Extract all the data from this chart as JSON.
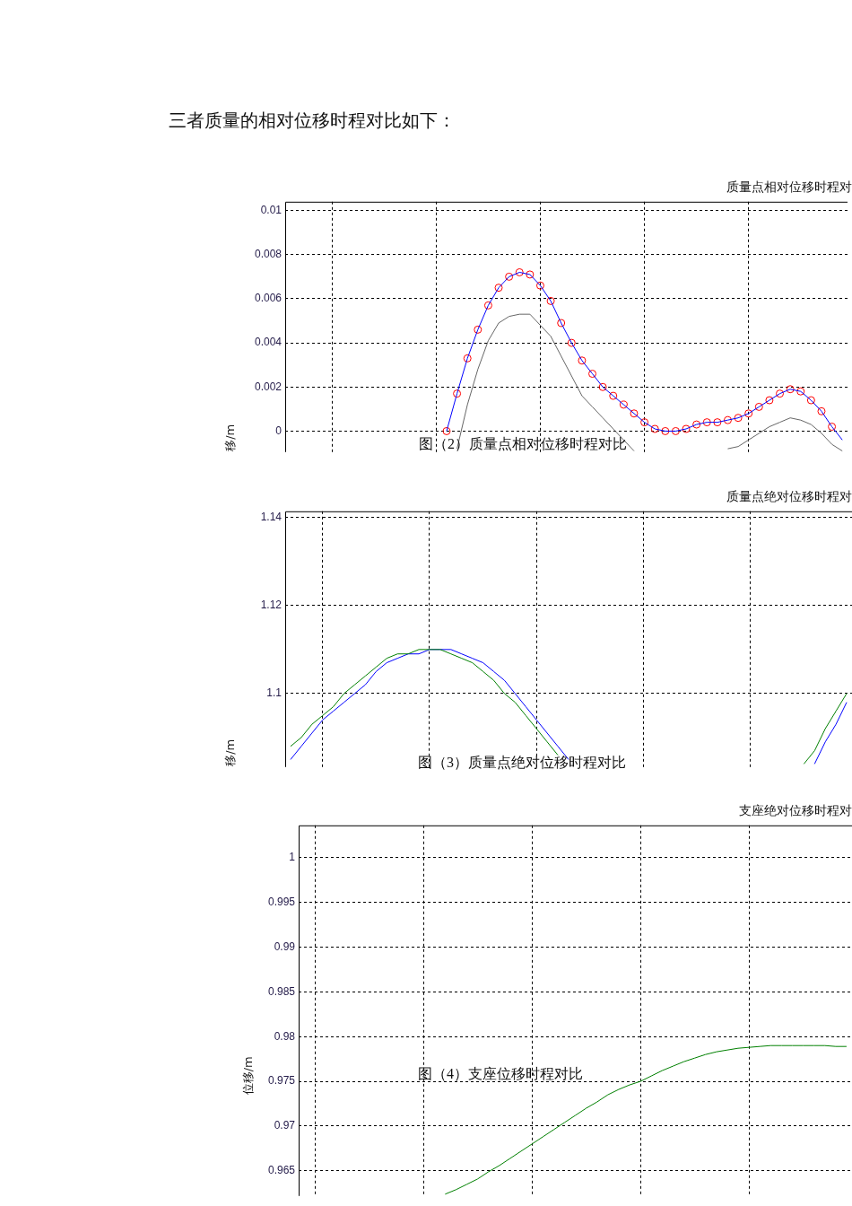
{
  "chart_data": [
    {
      "type": "line",
      "title": "质量点相对位移时程对",
      "ylabel": "移/m",
      "annotations": [
        "三者质量的相对位移时程对比如下：",
        "图（2）质量点相对位移时程对比"
      ],
      "categories": [
        null,
        null,
        null,
        null,
        null,
        null,
        null,
        null,
        null,
        null,
        null,
        null,
        null,
        null,
        null,
        null,
        null,
        null,
        null,
        null,
        null,
        null,
        null,
        null,
        null,
        null,
        null,
        null,
        null,
        null,
        null,
        null,
        null,
        null,
        null,
        null,
        null,
        null,
        null,
        null,
        null,
        null,
        null,
        null,
        null,
        null,
        null,
        null,
        null,
        null,
        null,
        null,
        null,
        null
      ],
      "ylim": [
        -0.00095,
        0.0104
      ],
      "yticks": [
        0,
        0.002,
        0.004,
        0.006,
        0.008,
        0.01
      ],
      "grid": true,
      "tick_labels": "y",
      "series": [
        {
          "type": "line",
          "color": "#666666",
          "values": [
            null,
            null,
            null,
            null,
            null,
            null,
            null,
            null,
            null,
            null,
            null,
            null,
            null,
            null,
            null,
            null,
            -0.0008,
            0.0012,
            0.0028,
            0.0041,
            0.0049,
            0.0052,
            0.0053,
            0.0053,
            0.0048,
            0.0043,
            0.0034,
            0.0025,
            0.0016,
            0.0011,
            0.0006,
            0.0001,
            -0.0004,
            -0.0009,
            null,
            null,
            null,
            null,
            null,
            null,
            null,
            null,
            -0.0008,
            -0.0007,
            -0.0004,
            -0.0001,
            0.0002,
            0.0004,
            0.0006,
            0.0005,
            0.0003,
            -0.0001,
            -0.0006,
            -0.0009
          ]
        },
        {
          "type": "line",
          "color": "#0000ff",
          "values": [
            null,
            null,
            null,
            null,
            null,
            null,
            null,
            null,
            null,
            null,
            null,
            null,
            null,
            null,
            null,
            0.0,
            0.0017,
            0.0033,
            0.0046,
            0.0057,
            0.0065,
            0.007,
            0.0072,
            0.0071,
            0.0066,
            0.0059,
            0.0049,
            0.004,
            0.0032,
            0.0026,
            0.002,
            0.0016,
            0.0012,
            0.0008,
            0.0004,
            0.0001,
            0.0,
            0.0,
            0.0001,
            0.0003,
            0.0004,
            0.0004,
            0.0005,
            0.0006,
            0.0008,
            0.0011,
            0.0014,
            0.0017,
            0.0019,
            0.0018,
            0.0014,
            0.0009,
            0.0002,
            -0.0004
          ]
        },
        {
          "type": "scatter",
          "marker": "circle",
          "color": "#ff0000",
          "values": [
            null,
            null,
            null,
            null,
            null,
            null,
            null,
            null,
            null,
            null,
            null,
            null,
            null,
            null,
            null,
            0.0,
            0.0017,
            0.0033,
            0.0046,
            0.0057,
            0.0065,
            0.007,
            0.0072,
            0.0071,
            0.0066,
            0.0059,
            0.0049,
            0.004,
            0.0032,
            0.0026,
            0.002,
            0.0016,
            0.0012,
            0.0008,
            0.0004,
            0.0001,
            0.0,
            0.0,
            0.0001,
            0.0003,
            0.0004,
            0.0004,
            0.0005,
            0.0006,
            0.0008,
            0.0011,
            0.0014,
            0.0017,
            0.0019,
            0.0018,
            0.0014,
            0.0009,
            0.0002,
            null
          ]
        }
      ]
    },
    {
      "type": "line",
      "title": "质量点绝对位移时程对",
      "ylabel": "移/m",
      "annotations": [
        "图（3）质量点绝对位移时程对比"
      ],
      "categories": [
        null,
        null,
        null,
        null,
        null,
        null,
        null,
        null,
        null,
        null,
        null,
        null,
        null,
        null,
        null,
        null,
        null,
        null,
        null,
        null,
        null,
        null,
        null,
        null,
        null,
        null,
        null,
        null,
        null,
        null,
        null,
        null,
        null,
        null,
        null,
        null,
        null,
        null,
        null,
        null,
        null,
        null,
        null,
        null,
        null,
        null,
        null,
        null,
        null,
        null,
        null,
        null,
        null
      ],
      "ylim": [
        1.0833,
        1.1414
      ],
      "yticks": [
        1.1,
        1.12,
        1.14
      ],
      "grid": true,
      "tick_labels": "y",
      "series": [
        {
          "type": "line",
          "color": "#008000",
          "values": [
            1.088,
            1.09,
            1.093,
            1.095,
            1.097,
            1.1,
            1.102,
            1.104,
            1.106,
            1.108,
            1.109,
            1.109,
            1.11,
            1.11,
            1.11,
            1.109,
            1.108,
            1.107,
            1.105,
            1.103,
            1.1,
            1.098,
            1.095,
            1.092,
            1.089,
            1.086,
            null,
            null,
            null,
            null,
            null,
            null,
            null,
            null,
            null,
            null,
            null,
            null,
            null,
            null,
            null,
            null,
            null,
            null,
            null,
            null,
            null,
            null,
            1.084,
            1.087,
            1.092,
            1.096,
            1.1
          ]
        },
        {
          "type": "line",
          "color": "#0000ff",
          "values": [
            1.085,
            1.088,
            1.091,
            1.094,
            1.096,
            1.098,
            1.1,
            1.102,
            1.105,
            1.107,
            1.108,
            1.109,
            1.109,
            1.11,
            1.11,
            1.11,
            1.109,
            1.108,
            1.107,
            1.105,
            1.103,
            1.1,
            1.097,
            1.094,
            1.091,
            1.088,
            1.085,
            null,
            null,
            null,
            null,
            null,
            null,
            null,
            null,
            null,
            null,
            null,
            null,
            null,
            null,
            null,
            null,
            null,
            null,
            null,
            null,
            null,
            null,
            1.084,
            1.089,
            1.093,
            1.098
          ]
        }
      ]
    },
    {
      "type": "line",
      "title": "支座绝对位移时程对",
      "ylabel": "位移/m",
      "annotations": [
        "图（4）支座位移时程对比"
      ],
      "categories": [
        null,
        null,
        null,
        null,
        null,
        null,
        null,
        null,
        null,
        null,
        null,
        null,
        null,
        null,
        null,
        null,
        null,
        null,
        null,
        null,
        null,
        null,
        null,
        null,
        null,
        null,
        null,
        null,
        null,
        null,
        null,
        null,
        null,
        null,
        null,
        null,
        null,
        null,
        null,
        null,
        null,
        null,
        null,
        null,
        null,
        null,
        null,
        null,
        null,
        null,
        null
      ],
      "ylim": [
        0.9622,
        1.0036
      ],
      "yticks": [
        0.965,
        0.97,
        0.975,
        0.98,
        0.985,
        0.99,
        0.995,
        1
      ],
      "grid": true,
      "tick_labels": "y",
      "series": [
        {
          "type": "line",
          "color": "#008000",
          "values": [
            null,
            null,
            null,
            null,
            null,
            null,
            null,
            null,
            null,
            null,
            null,
            null,
            null,
            0.9624,
            0.9629,
            0.9635,
            0.9641,
            0.9649,
            0.9656,
            0.9664,
            0.9672,
            0.968,
            0.9688,
            0.9696,
            0.9704,
            0.9712,
            0.972,
            0.9727,
            0.9735,
            0.9741,
            0.9746,
            0.975,
            0.9756,
            0.9762,
            0.9767,
            0.9772,
            0.9776,
            0.978,
            0.9783,
            0.9785,
            0.9787,
            0.9788,
            0.9789,
            0.979,
            0.979,
            0.979,
            0.979,
            0.979,
            0.979,
            0.9789,
            0.9789
          ]
        }
      ]
    }
  ]
}
